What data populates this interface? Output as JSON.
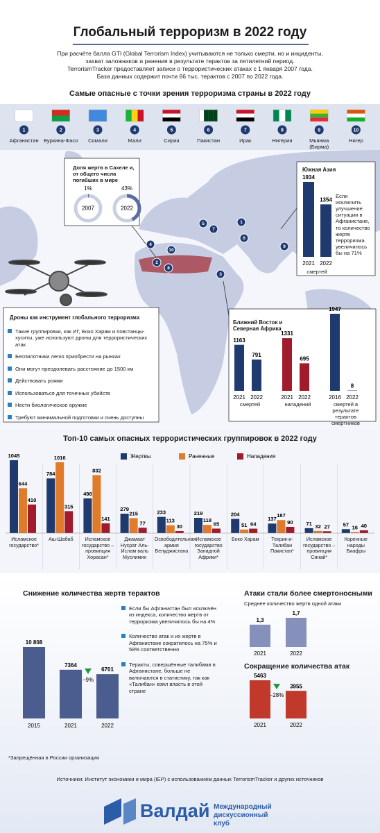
{
  "header": {
    "title": "Глобальный терроризм в 2022 году",
    "intro": [
      "При расчёте балла GTI (Global Terrorism Index) учитываются не только смерти, но и инциденты,",
      "захват заложников и ранения в результате терактов за пятилетний период.",
      "TerrorismTracker предоставляет записи о террористических атаках с 1 января 2007 года.",
      "База данных содержит почти 66 тыс. терактов с 2007 по 2022 года."
    ]
  },
  "countries": {
    "title": "Самые опасные с точки зрения терроризма страны в 2022 году",
    "items": [
      {
        "rank": 1,
        "name": "Афганистан"
      },
      {
        "rank": 2,
        "name": "Буркина-Фасо"
      },
      {
        "rank": 3,
        "name": "Сомали"
      },
      {
        "rank": 4,
        "name": "Мали"
      },
      {
        "rank": 5,
        "name": "Сирия"
      },
      {
        "rank": 6,
        "name": "Пакистан"
      },
      {
        "rank": 7,
        "name": "Ирак"
      },
      {
        "rank": 8,
        "name": "Нигерия"
      },
      {
        "rank": 9,
        "name": "Мьянма (Бирма)"
      },
      {
        "rank": 10,
        "name": "Нигер"
      }
    ]
  },
  "drones": {
    "title": "Дроны как инструмент глобального терроризма",
    "items": [
      "Такие группировки, как ИГ, Боко Харам и повстанцы-хуситы, уже используют дроны для террористических атак",
      "Беспилотники легко приобрести на рынках",
      "Они могут преодолевать расстояние до 1500 км",
      "Действовать роями",
      "Использоваться для точечных убийств",
      "Нести биологическое оружие",
      "Требуют минимальной подготовки и очень доступны"
    ]
  },
  "chart_data": [
    {
      "type": "donut",
      "title": "Доля жертв в Сахеле и, от общего числа погибших в мире",
      "categories": [
        "2007",
        "2022"
      ],
      "values": [
        1,
        43
      ],
      "value_labels": [
        "1%",
        "43%"
      ],
      "color": "#5b6c9e",
      "track_color": "#c9d0e3"
    },
    {
      "type": "bar",
      "title": "Южная Азия",
      "categories": [
        "2021",
        "2022"
      ],
      "values": [
        1934,
        1354
      ],
      "color": "#1f3a6e",
      "xlabel": "смертей",
      "annotation": "Если исключить улучшение ситуации в Афганистане, то количество жертв терроризма увеличилось бы на 71%"
    },
    {
      "type": "bar",
      "title": "Ближний Восток и Северная Африка",
      "panels": [
        {
          "label": "смертей",
          "categories": [
            "2021",
            "2022"
          ],
          "values": [
            1163,
            791
          ],
          "color": "#1f3a6e"
        },
        {
          "label": "нападений",
          "categories": [
            "2021",
            "2022"
          ],
          "values": [
            1331,
            695
          ],
          "color": "#a01c2c"
        },
        {
          "label": "смертей в результате терактов смертников",
          "categories": [
            "2016",
            "2022"
          ],
          "values": [
            1947,
            8
          ],
          "color": "#1f3a6e"
        }
      ]
    },
    {
      "type": "grouped_bar",
      "title": "Топ-10 самых опасных террористических группировок в 2022 году",
      "categories": [
        "Исламское государство*",
        "Аш-Шабаб",
        "Исламское государство – провинция Хорасан*",
        "Джамаат Нусрат Аль-Ислам валь Муслимин",
        "Освободительная армия Белуджистана",
        "Исламское государство Западной Африки*",
        "Боко Харам",
        "Техрик-и-Талибан Пакистан*",
        "Исламское государство – провинция Синай*",
        "Коренные народы Биафры"
      ],
      "series": [
        {
          "name": "Жертвы",
          "color": "#1f3a6e",
          "values": [
            1045,
            784,
            498,
            279,
            233,
            219,
            204,
            137,
            71,
            57
          ]
        },
        {
          "name": "Раненные",
          "color": "#e07b2a",
          "values": [
            644,
            1016,
            832,
            215,
            113,
            118,
            51,
            187,
            32,
            16
          ]
        },
        {
          "name": "Нападения",
          "color": "#a01c2c",
          "values": [
            410,
            315,
            141,
            77,
            30,
            65,
            64,
            90,
            27,
            40
          ]
        }
      ]
    },
    {
      "type": "bar",
      "title": "Снижение количества жертв терактов",
      "categories": [
        "2015",
        "2021",
        "2022"
      ],
      "values": [
        10808,
        7364,
        6701
      ],
      "value_labels": [
        "10 808",
        "7364",
        "6701"
      ],
      "color": "#4b5d8e",
      "change": {
        "value": -9,
        "label": "−9%"
      },
      "notes": [
        "Если бы Афганистан был исключён из индекса, количество жертв от терроризма увеличилось бы на 4%",
        "Количество атак и их жертв в Афганистане сократилось на 75% и 58% соответственно",
        "Теракты, совершённые талибами в Афганистане, больше не включаются в статистику, так как «Талибан» взял власть в этой стране"
      ]
    },
    {
      "type": "bar",
      "title": "Атаки стали более смертоносными",
      "subtitle": "Среднее количество жертв одной атаки",
      "categories": [
        "2021",
        "2022"
      ],
      "values": [
        1.3,
        1.7
      ],
      "value_labels": [
        "1,3",
        "1,7"
      ],
      "color": "#8591ba"
    },
    {
      "type": "bar",
      "title": "Сокращение количества атак",
      "categories": [
        "2021",
        "2022"
      ],
      "values": [
        5463,
        3955
      ],
      "color": "#c0392b",
      "change": {
        "value": -28,
        "label": "−28%"
      }
    }
  ],
  "footnote": "*Запрещённая в России организация",
  "sources": "Источники: Институт экономики и мира (IEP) с использованием данных TerrorismTracker и других источников",
  "logo": {
    "name": "Валдай",
    "subtitle": "Международный дискуссионный клуб"
  }
}
